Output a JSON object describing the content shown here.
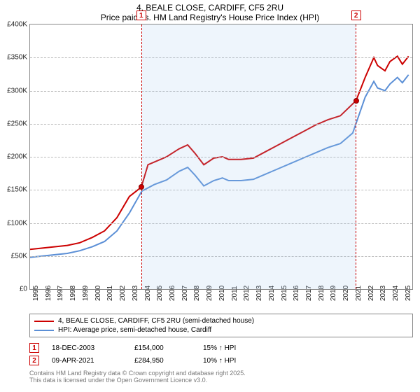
{
  "title": {
    "line1": "4, BEALE CLOSE, CARDIFF, CF5 2RU",
    "line2": "Price paid vs. HM Land Registry's House Price Index (HPI)"
  },
  "chart": {
    "type": "line",
    "background_color": "#ffffff",
    "grid_color": "#bbbbbb",
    "border_color": "#888888",
    "x": {
      "min": 1995,
      "max": 2025.8,
      "ticks": [
        1995,
        1996,
        1997,
        1998,
        1999,
        2000,
        2001,
        2002,
        2003,
        2004,
        2005,
        2006,
        2007,
        2008,
        2009,
        2010,
        2011,
        2012,
        2013,
        2014,
        2015,
        2016,
        2017,
        2018,
        2019,
        2020,
        2021,
        2022,
        2023,
        2024,
        2025
      ]
    },
    "y": {
      "min": 0,
      "max": 400000,
      "ticks": [
        {
          "v": 0,
          "label": "£0"
        },
        {
          "v": 50000,
          "label": "£50K"
        },
        {
          "v": 100000,
          "label": "£100K"
        },
        {
          "v": 150000,
          "label": "£150K"
        },
        {
          "v": 200000,
          "label": "£200K"
        },
        {
          "v": 250000,
          "label": "£250K"
        },
        {
          "v": 300000,
          "label": "£300K"
        },
        {
          "v": 350000,
          "label": "£350K"
        },
        {
          "v": 400000,
          "label": "£400K"
        }
      ]
    },
    "shade": {
      "from": 2003.96,
      "to": 2021.27,
      "fill": "rgba(160,200,240,0.18)",
      "border": "#cc0000"
    },
    "marker_labels": {
      "m1": "1",
      "m2": "2"
    },
    "series": [
      {
        "id": "subject",
        "label": "4, BEALE CLOSE, CARDIFF, CF5 2RU (semi-detached house)",
        "color": "#cc0000",
        "line_width": 2,
        "points": [
          [
            1995,
            60000
          ],
          [
            1996,
            62000
          ],
          [
            1997,
            64000
          ],
          [
            1998,
            66000
          ],
          [
            1999,
            70000
          ],
          [
            2000,
            78000
          ],
          [
            2001,
            88000
          ],
          [
            2002,
            108000
          ],
          [
            2003,
            140000
          ],
          [
            2003.96,
            154000
          ],
          [
            2004.5,
            188000
          ],
          [
            2005,
            192000
          ],
          [
            2006,
            200000
          ],
          [
            2007,
            212000
          ],
          [
            2007.7,
            218000
          ],
          [
            2008.3,
            205000
          ],
          [
            2009,
            188000
          ],
          [
            2009.8,
            198000
          ],
          [
            2010.5,
            200000
          ],
          [
            2011,
            196000
          ],
          [
            2012,
            196000
          ],
          [
            2013,
            198000
          ],
          [
            2014,
            208000
          ],
          [
            2015,
            218000
          ],
          [
            2016,
            228000
          ],
          [
            2017,
            238000
          ],
          [
            2018,
            248000
          ],
          [
            2019,
            256000
          ],
          [
            2020,
            262000
          ],
          [
            2021,
            280000
          ],
          [
            2021.27,
            284950
          ],
          [
            2022,
            320000
          ],
          [
            2022.7,
            350000
          ],
          [
            2023,
            338000
          ],
          [
            2023.6,
            330000
          ],
          [
            2024,
            344000
          ],
          [
            2024.6,
            352000
          ],
          [
            2025,
            340000
          ],
          [
            2025.5,
            352000
          ]
        ]
      },
      {
        "id": "hpi",
        "label": "HPI: Average price, semi-detached house, Cardiff",
        "color": "#5b8fd6",
        "line_width": 2,
        "points": [
          [
            1995,
            48000
          ],
          [
            1996,
            50000
          ],
          [
            1997,
            52000
          ],
          [
            1998,
            54000
          ],
          [
            1999,
            58000
          ],
          [
            2000,
            64000
          ],
          [
            2001,
            72000
          ],
          [
            2002,
            88000
          ],
          [
            2003,
            115000
          ],
          [
            2004,
            148000
          ],
          [
            2005,
            158000
          ],
          [
            2006,
            165000
          ],
          [
            2007,
            178000
          ],
          [
            2007.7,
            184000
          ],
          [
            2008.3,
            172000
          ],
          [
            2009,
            156000
          ],
          [
            2009.8,
            164000
          ],
          [
            2010.5,
            168000
          ],
          [
            2011,
            164000
          ],
          [
            2012,
            164000
          ],
          [
            2013,
            166000
          ],
          [
            2014,
            174000
          ],
          [
            2015,
            182000
          ],
          [
            2016,
            190000
          ],
          [
            2017,
            198000
          ],
          [
            2018,
            206000
          ],
          [
            2019,
            214000
          ],
          [
            2020,
            220000
          ],
          [
            2021,
            236000
          ],
          [
            2022,
            290000
          ],
          [
            2022.7,
            314000
          ],
          [
            2023,
            304000
          ],
          [
            2023.6,
            300000
          ],
          [
            2024,
            310000
          ],
          [
            2024.6,
            320000
          ],
          [
            2025,
            312000
          ],
          [
            2025.5,
            324000
          ]
        ]
      }
    ],
    "event_points": [
      {
        "id": "m1",
        "x": 2003.96,
        "y": 154000
      },
      {
        "id": "m2",
        "x": 2021.27,
        "y": 284950
      }
    ]
  },
  "legend": {
    "rows": [
      {
        "color": "#cc0000",
        "label": "4, BEALE CLOSE, CARDIFF, CF5 2RU (semi-detached house)"
      },
      {
        "color": "#5b8fd6",
        "label": "HPI: Average price, semi-detached house, Cardiff"
      }
    ]
  },
  "events": [
    {
      "marker": "1",
      "date": "18-DEC-2003",
      "price": "£154,000",
      "delta": "15% ↑ HPI"
    },
    {
      "marker": "2",
      "date": "09-APR-2021",
      "price": "£284,950",
      "delta": "10% ↑ HPI"
    }
  ],
  "footer": {
    "line1": "Contains HM Land Registry data © Crown copyright and database right 2025.",
    "line2": "This data is licensed under the Open Government Licence v3.0."
  }
}
